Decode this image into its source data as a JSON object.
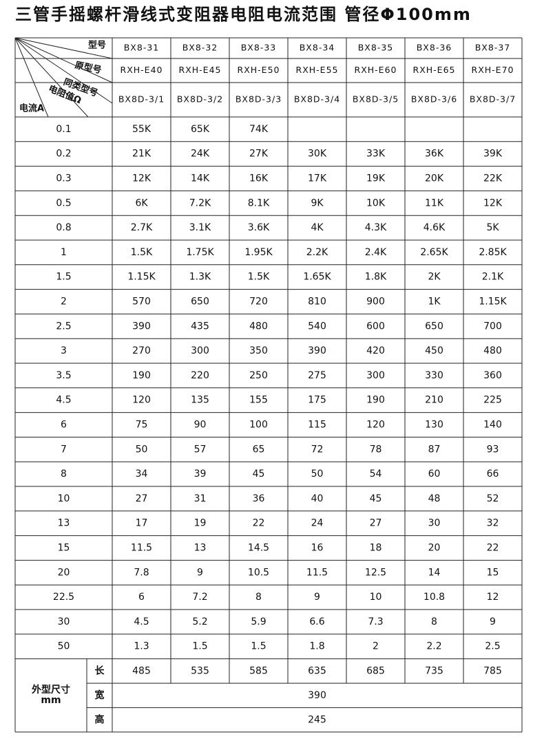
{
  "title": "三管手摇螺杆滑线式变阻器电阻电流范围 管径Φ100mm",
  "header": {
    "corner": [
      "型号",
      "原型号",
      "同类型号",
      "电阻值Ω",
      "电流A"
    ],
    "models": [
      "BX8-31",
      "BX8-32",
      "BX8-33",
      "BX8-34",
      "BX8-35",
      "BX8-36",
      "BX8-37"
    ],
    "original_models": [
      "RXH-E40",
      "RXH-E45",
      "RXH-E50",
      "RXH-E55",
      "RXH-E60",
      "RXH-E65",
      "RXH-E70"
    ],
    "similar_models": [
      "BX8D-3/1",
      "BX8D-3/2",
      "BX8D-3/3",
      "BX8D-3/4",
      "BX8D-3/5",
      "BX8D-3/6",
      "BX8D-3/7"
    ]
  },
  "table": {
    "rows": [
      [
        "0.1",
        "55K",
        "65K",
        "74K"
      ],
      [
        "0.2",
        "21K",
        "24K",
        "27K",
        "30K",
        "33K",
        "36K",
        "39K"
      ],
      [
        "0.3",
        "12K",
        "14K",
        "16K",
        "17K",
        "19K",
        "20K",
        "22K"
      ],
      [
        "0.5",
        "6K",
        "7.2K",
        "8.1K",
        "9K",
        "10K",
        "11K",
        "12K"
      ],
      [
        "0.8",
        "2.7K",
        "3.1K",
        "3.6K",
        "4K",
        "4.3K",
        "4.6K",
        "5K"
      ],
      [
        "1",
        "1.5K",
        "1.75K",
        "1.95K",
        "2.2K",
        "2.4K",
        "2.65K",
        "2.85K"
      ],
      [
        "1.5",
        "1.15K",
        "1.3K",
        "1.5K",
        "1.65K",
        "1.8K",
        "2K",
        "2.1K"
      ],
      [
        "2",
        "570",
        "650",
        "720",
        "810",
        "900",
        "1K",
        "1.15K"
      ],
      [
        "2.5",
        "390",
        "435",
        "480",
        "540",
        "600",
        "650",
        "700"
      ],
      [
        "3",
        "270",
        "300",
        "350",
        "390",
        "420",
        "450",
        "480"
      ],
      [
        "3.5",
        "190",
        "220",
        "250",
        "275",
        "300",
        "330",
        "360"
      ],
      [
        "4.5",
        "120",
        "135",
        "155",
        "175",
        "190",
        "210",
        "225"
      ],
      [
        "6",
        "75",
        "90",
        "100",
        "115",
        "120",
        "130",
        "140"
      ],
      [
        "7",
        "50",
        "57",
        "65",
        "72",
        "78",
        "87",
        "93"
      ],
      [
        "8",
        "34",
        "39",
        "45",
        "50",
        "54",
        "60",
        "66"
      ],
      [
        "10",
        "27",
        "31",
        "36",
        "40",
        "45",
        "48",
        "52"
      ],
      [
        "13",
        "17",
        "19",
        "22",
        "24",
        "27",
        "30",
        "32"
      ],
      [
        "15",
        "11.5",
        "13",
        "14.5",
        "16",
        "18",
        "20",
        "22"
      ],
      [
        "20",
        "7.8",
        "9",
        "10.5",
        "11.5",
        "12.5",
        "14",
        "15"
      ],
      [
        "22.5",
        "6",
        "7.2",
        "8",
        "9",
        "10",
        "10.8",
        "12"
      ],
      [
        "30",
        "4.5",
        "5.2",
        "5.9",
        "6.6",
        "7.3",
        "8",
        "9"
      ],
      [
        "50",
        "1.3",
        "1.5",
        "1.5",
        "1.8",
        "2",
        "2.2",
        "2.5"
      ]
    ]
  },
  "dimensions": {
    "label": "外型尺寸",
    "unit": "mm",
    "length": {
      "label": "长",
      "values": [
        "485",
        "535",
        "585",
        "635",
        "685",
        "735",
        "785"
      ]
    },
    "width": {
      "label": "宽",
      "value": "390"
    },
    "height": {
      "label": "高",
      "value": "245"
    }
  }
}
